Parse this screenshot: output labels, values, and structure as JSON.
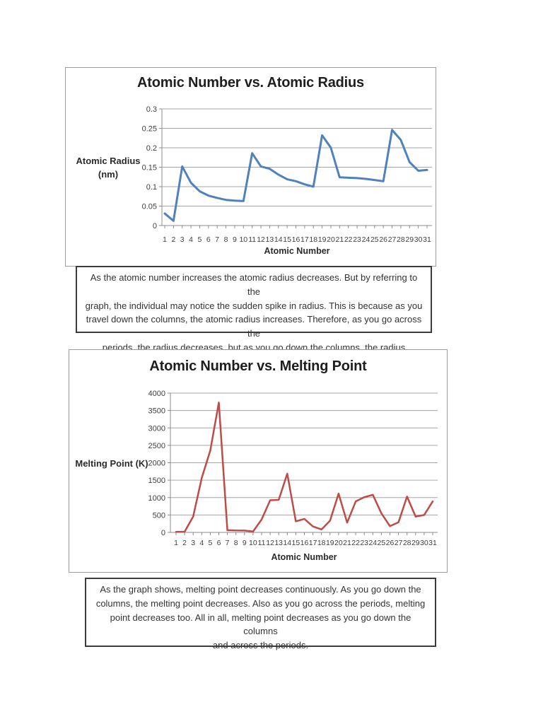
{
  "chart_data": [
    {
      "type": "line",
      "title": "Atomic Number vs. Atomic Radius",
      "xlabel": "Atomic Number",
      "ylabel": "Atomic Radius (nm)",
      "ylabel_display": "Atomic Radius\n(nm)",
      "x": [
        1,
        2,
        3,
        4,
        5,
        6,
        7,
        8,
        9,
        10,
        11,
        12,
        13,
        14,
        15,
        16,
        17,
        18,
        19,
        20,
        21,
        22,
        23,
        24,
        25,
        26,
        27,
        28,
        29,
        30,
        31
      ],
      "values": [
        0.031,
        0.012,
        0.152,
        0.11,
        0.088,
        0.077,
        0.071,
        0.066,
        0.064,
        0.063,
        0.186,
        0.152,
        0.146,
        0.131,
        0.119,
        0.114,
        0.106,
        0.1,
        0.232,
        0.2,
        0.124,
        0.123,
        0.122,
        0.12,
        0.117,
        0.114,
        0.246,
        0.22,
        0.163,
        0.141,
        0.143
      ],
      "ylim": [
        0,
        0.3
      ],
      "yticks": [
        "0",
        "0.05",
        "0.1",
        "0.15",
        "0.2",
        "0.25",
        "0.3"
      ],
      "grid": true,
      "legend": "none",
      "line_color": "#4f81bd",
      "grid_color": "#a6a6a6",
      "axis_color": "#8c8c8c",
      "tick_color": "#3f3f3f"
    },
    {
      "type": "line",
      "title": "Atomic Number vs. Melting Point",
      "xlabel": "Atomic Number",
      "ylabel": "Melting Point (K)",
      "ylabel_display": "Melting Point (K)",
      "x": [
        1,
        2,
        3,
        4,
        5,
        6,
        7,
        8,
        9,
        10,
        11,
        12,
        13,
        14,
        15,
        16,
        17,
        18,
        19,
        20,
        21,
        22,
        23,
        24,
        25,
        26,
        27,
        28,
        29,
        30,
        31
      ],
      "values": [
        14,
        20,
        454,
        1560,
        2350,
        3730,
        63,
        55,
        53,
        25,
        371,
        923,
        933,
        1687,
        317,
        388,
        172,
        84,
        337,
        1115,
        280,
        890,
        1010,
        1080,
        550,
        180,
        290,
        1030,
        455,
        500,
        890
      ],
      "ylim": [
        0,
        4000
      ],
      "yticks": [
        "0",
        "500",
        "1000",
        "1500",
        "2000",
        "2500",
        "3000",
        "3500",
        "4000"
      ],
      "grid": true,
      "legend": "none",
      "line_color": "#bf4b47",
      "grid_color": "#a6a6a6",
      "axis_color": "#8c8c8c",
      "tick_color": "#3f3f3f"
    }
  ],
  "captions": {
    "radius": "As the atomic number increases the atomic radius decreases. But by referring to the\ngraph, the individual may notice the sudden spike in radius. This is because as you\ntravel down the columns, the atomic radius increases. Therefore, as you go across the\nperiods, the radius decreases, but as you go down the columns, the radius increases.",
    "melting": "As the graph shows, melting point decreases continuously. As you go down the\ncolumns, the melting point decreases. Also as you go across the periods, melting\npoint decreases too. All in all, melting point decreases as you go down the columns\nand across the periods."
  }
}
